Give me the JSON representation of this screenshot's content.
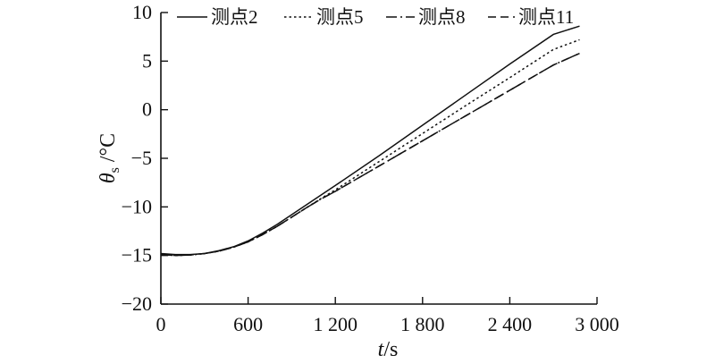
{
  "chart_data": {
    "type": "line",
    "title": "",
    "xlabel": {
      "var": "t",
      "unit": "/s"
    },
    "ylabel": {
      "var": "θ",
      "sub": "s",
      "unit": " /°C"
    },
    "xlim": [
      0,
      3000
    ],
    "ylim": [
      -20,
      10
    ],
    "x_ticks": [
      0,
      600,
      1200,
      1800,
      2400,
      3000
    ],
    "x_tick_labels": [
      "0",
      "600",
      "1 200",
      "1 800",
      "2 400",
      "3 000"
    ],
    "y_ticks": [
      -20,
      -15,
      -10,
      -5,
      0,
      5,
      10
    ],
    "y_tick_labels": [
      "−20",
      "−15",
      "−10",
      "−5",
      "0",
      "5",
      "10"
    ],
    "grid": false,
    "legend_position": "top",
    "series": [
      {
        "name": "测点2",
        "dash": "solid",
        "x": [
          0,
          100,
          200,
          300,
          400,
          500,
          600,
          700,
          800,
          900,
          1000,
          1100,
          1200,
          1500,
          1800,
          2100,
          2400,
          2700,
          2880
        ],
        "y": [
          -14.8,
          -14.9,
          -14.9,
          -14.8,
          -14.5,
          -14.1,
          -13.5,
          -12.7,
          -11.8,
          -10.8,
          -9.8,
          -8.8,
          -7.8,
          -4.75,
          -1.6,
          1.55,
          4.7,
          7.75,
          8.6
        ]
      },
      {
        "name": "测点5",
        "dash": "dotted",
        "x": [
          0,
          100,
          200,
          300,
          400,
          500,
          600,
          700,
          800,
          900,
          1000,
          1100,
          1200,
          1500,
          1800,
          2100,
          2400,
          2700,
          2880
        ],
        "y": [
          -14.9,
          -15.0,
          -14.95,
          -14.8,
          -14.55,
          -14.15,
          -13.6,
          -12.85,
          -12.0,
          -11.05,
          -10.1,
          -9.15,
          -8.25,
          -5.35,
          -2.45,
          0.45,
          3.3,
          6.2,
          7.2
        ]
      },
      {
        "name": "测点8",
        "dash": "dashdot",
        "x": [
          0,
          100,
          200,
          300,
          400,
          500,
          600,
          700,
          800,
          900,
          1000,
          1100,
          1200,
          1500,
          1800,
          2100,
          2400,
          2700,
          2880
        ],
        "y": [
          -14.9,
          -15.0,
          -14.95,
          -14.8,
          -14.55,
          -14.15,
          -13.6,
          -12.85,
          -12.0,
          -11.05,
          -10.1,
          -9.2,
          -8.4,
          -5.8,
          -3.2,
          -0.6,
          2.0,
          4.6,
          5.8
        ]
      },
      {
        "name": "测点11",
        "dash": "dashed",
        "x": [
          0,
          100,
          200,
          300,
          400,
          500,
          600,
          700,
          800,
          900,
          1000,
          1100,
          1200,
          1500,
          1800,
          2100,
          2400,
          2700,
          2880
        ],
        "y": [
          -14.9,
          -15.0,
          -14.95,
          -14.8,
          -14.55,
          -14.15,
          -13.6,
          -12.85,
          -12.0,
          -11.05,
          -10.1,
          -9.2,
          -8.4,
          -5.8,
          -3.2,
          -0.6,
          2.0,
          4.6,
          5.8
        ]
      }
    ]
  }
}
